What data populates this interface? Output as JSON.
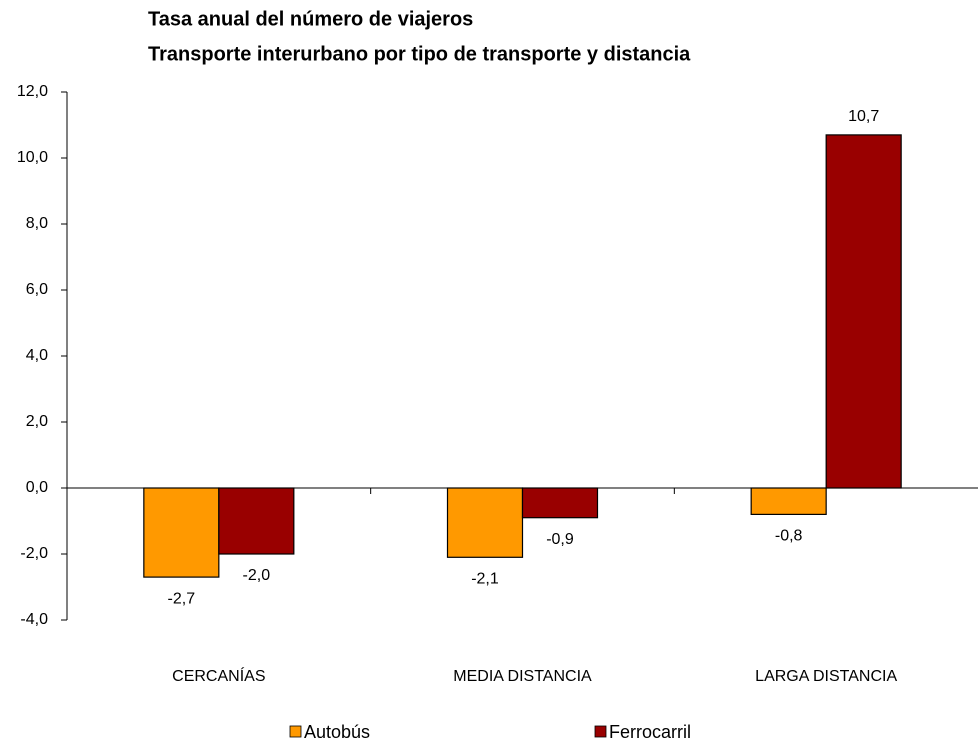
{
  "chart_data": {
    "type": "bar",
    "title": "Tasa anual del número de viajeros",
    "subtitle": "Transporte interurbano por tipo de transporte y distancia",
    "categories": [
      "CERCANÍAS",
      "MEDIA DISTANCIA",
      "LARGA DISTANCIA"
    ],
    "series": [
      {
        "name": "Autobús",
        "color": "#ff9900",
        "values": [
          -2.7,
          -2.1,
          -0.8
        ],
        "value_labels": [
          "-2,7",
          "-2,1",
          "-0,8"
        ]
      },
      {
        "name": "Ferrocarril",
        "color": "#990000",
        "values": [
          -2.0,
          -0.9,
          10.7
        ],
        "value_labels": [
          "-2,0",
          "-0,9",
          "10,7"
        ]
      }
    ],
    "ylim": [
      -4,
      12
    ],
    "yticks": [
      {
        "value": -4,
        "label": "-4,0"
      },
      {
        "value": -2,
        "label": "-2,0"
      },
      {
        "value": 0,
        "label": "0,0"
      },
      {
        "value": 2,
        "label": "2,0"
      },
      {
        "value": 4,
        "label": "4,0"
      },
      {
        "value": 6,
        "label": "6,0"
      },
      {
        "value": 8,
        "label": "8,0"
      },
      {
        "value": 10,
        "label": "10,0"
      },
      {
        "value": 12,
        "label": "12,0"
      }
    ],
    "grid": false,
    "legend": "bottom"
  }
}
